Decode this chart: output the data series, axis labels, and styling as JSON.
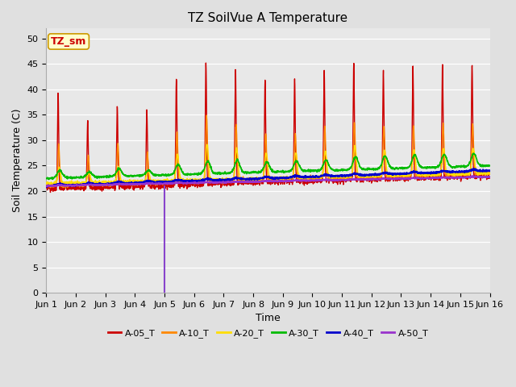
{
  "title": "TZ SoilVue A Temperature",
  "xlabel": "Time",
  "ylabel": "Soil Temperature (C)",
  "ylim": [
    0,
    52
  ],
  "yticks": [
    0,
    5,
    10,
    15,
    20,
    25,
    30,
    35,
    40,
    45,
    50
  ],
  "bg_color": "#e0e0e0",
  "plot_bg_color": "#e8e8e8",
  "series_colors": [
    "#cc0000",
    "#ff8800",
    "#ffdd00",
    "#00bb00",
    "#0000cc",
    "#9933cc"
  ],
  "series_labels": [
    "A-05_T",
    "A-10_T",
    "A-20_T",
    "A-30_T",
    "A-40_T",
    "A-50_T"
  ],
  "vertical_line_x": 4.0,
  "vertical_line_color": "#8844cc",
  "annotation_text": "TZ_sm",
  "annotation_bg": "#ffffcc",
  "annotation_border": "#cc9900",
  "title_fontsize": 11,
  "axis_fontsize": 9,
  "tick_fontsize": 8,
  "legend_fontsize": 8
}
